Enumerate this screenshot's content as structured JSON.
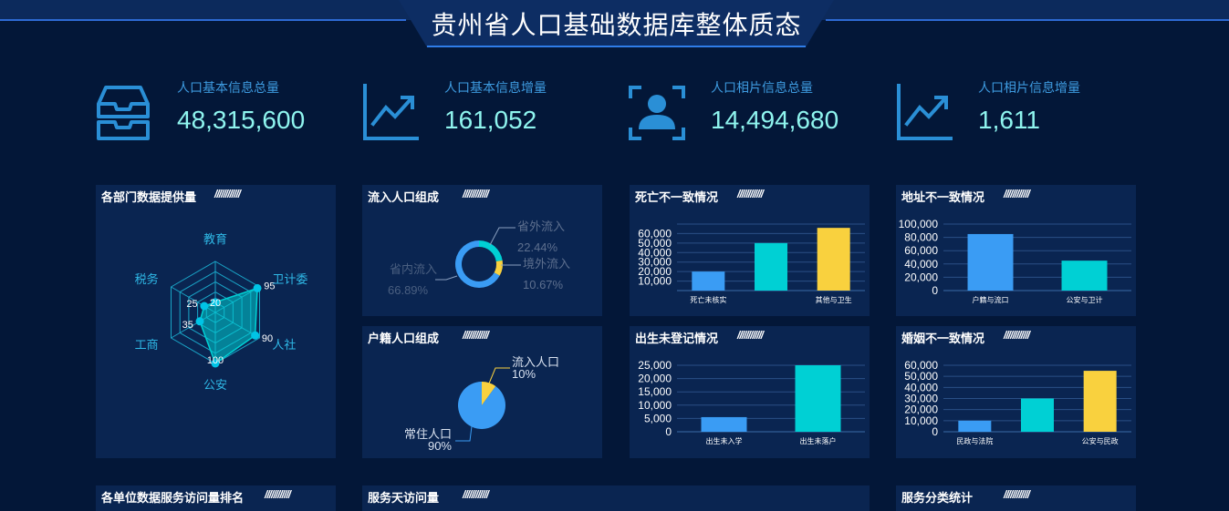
{
  "header": {
    "title": "贵州省人口基础数据库整体质态"
  },
  "stats": [
    {
      "label": "人口基本信息总量",
      "value": "48,315,600",
      "icon": "inbox-tray-icon"
    },
    {
      "label": "人口基本信息增量",
      "value": "161,052",
      "icon": "trend-chart-icon"
    },
    {
      "label": "人口相片信息总量",
      "value": "14,494,680",
      "icon": "portrait-scan-icon"
    },
    {
      "label": "人口相片信息增量",
      "value": "1,611",
      "icon": "trend-chart-icon"
    }
  ],
  "stripes": "////////////",
  "colors": {
    "background": "#031738",
    "panel": "#0a2551",
    "blue": "#3a9cf4",
    "cyan": "#00d0d4",
    "yellow": "#f9d13e",
    "stat_value": "#8ff5ef",
    "stat_label": "#3e9be0"
  },
  "panels": {
    "radar": {
      "title": "各部门数据提供量"
    },
    "inflow": {
      "title": "流入人口组成"
    },
    "household": {
      "title": "户籍人口组成"
    },
    "death": {
      "title": "死亡不一致情况"
    },
    "birth": {
      "title": "出生未登记情况"
    },
    "address": {
      "title": "地址不一致情况"
    },
    "marriage": {
      "title": "婚姻不一致情况"
    },
    "ranking": {
      "title": "各单位数据服务访问量排名"
    },
    "daily": {
      "title": "服务天访问量"
    },
    "category": {
      "title": "服务分类统计"
    }
  },
  "chart_data": [
    {
      "id": "radar",
      "type": "radar",
      "title": "各部门数据提供量",
      "indicators": [
        "教育",
        "卫计委",
        "人社",
        "公安",
        "工商",
        "税务"
      ],
      "values": [
        20,
        95,
        90,
        100,
        35,
        25
      ],
      "max": 100,
      "colors": [
        "#00d0d4"
      ]
    },
    {
      "id": "inflow",
      "type": "pie",
      "title": "流入人口组成",
      "labels": [
        "省外流入",
        "境外流入",
        "省内流入"
      ],
      "values": [
        22.44,
        10.67,
        66.89
      ],
      "value_labels": [
        "22.44%",
        "10.67%",
        "66.89%"
      ],
      "donut": true,
      "colors": [
        "#00d0d4",
        "#f9d13e",
        "#3a9cf4"
      ]
    },
    {
      "id": "household",
      "type": "pie",
      "title": "户籍人口组成",
      "labels": [
        "流入人口",
        "常住人口"
      ],
      "values": [
        10,
        90
      ],
      "value_labels": [
        "10%",
        "90%"
      ],
      "donut": false,
      "colors": [
        "#f9d13e",
        "#3a9cf4"
      ]
    },
    {
      "id": "death",
      "type": "bar",
      "title": "死亡不一致情况",
      "categories": [
        "死亡未核实",
        "",
        "其他与卫生"
      ],
      "values": [
        20000,
        50000,
        66000
      ],
      "colors": [
        "#3a9cf4",
        "#00d0d4",
        "#f9d13e"
      ],
      "yticks": [
        10000,
        20000,
        30000,
        40000,
        50000,
        60000
      ],
      "ytick_labels": [
        "10,000",
        "20,000",
        "30,000",
        "40,000",
        "50,000",
        "60,000"
      ],
      "ylim": [
        0,
        70000
      ]
    },
    {
      "id": "birth",
      "type": "bar",
      "title": "出生未登记情况",
      "categories": [
        "出生未入学",
        "出生未落户"
      ],
      "values": [
        5500,
        25000
      ],
      "colors": [
        "#3a9cf4",
        "#00d0d4"
      ],
      "yticks": [
        0,
        5000,
        10000,
        15000,
        20000,
        25000
      ],
      "ytick_labels": [
        "0",
        "5,000",
        "10,000",
        "15,000",
        "20,000",
        "25,000"
      ],
      "ylim": [
        0,
        25000
      ]
    },
    {
      "id": "address",
      "type": "bar",
      "title": "地址不一致情况",
      "categories": [
        "户籍与流口",
        "公安与卫计"
      ],
      "values": [
        85000,
        45000
      ],
      "colors": [
        "#3a9cf4",
        "#00d0d4"
      ],
      "yticks": [
        0,
        20000,
        40000,
        60000,
        80000,
        100000
      ],
      "ytick_labels": [
        "0",
        "20,000",
        "40,000",
        "60,000",
        "80,000",
        "100,000"
      ],
      "ylim": [
        0,
        100000
      ]
    },
    {
      "id": "marriage",
      "type": "bar",
      "title": "婚姻不一致情况",
      "categories": [
        "民政与法院",
        "",
        "公安与民政"
      ],
      "values": [
        10000,
        30000,
        55000
      ],
      "colors": [
        "#3a9cf4",
        "#00d0d4",
        "#f9d13e"
      ],
      "yticks": [
        0,
        10000,
        20000,
        30000,
        40000,
        50000,
        60000
      ],
      "ytick_labels": [
        "0",
        "10,000",
        "20,000",
        "30,000",
        "40,000",
        "50,000",
        "60,000"
      ],
      "ylim": [
        0,
        60000
      ]
    }
  ]
}
